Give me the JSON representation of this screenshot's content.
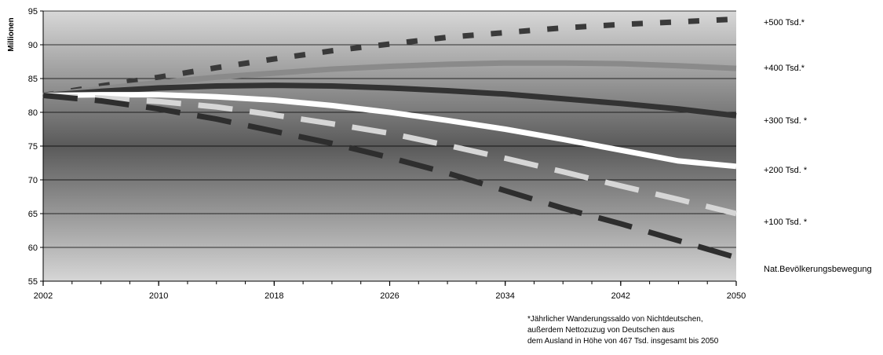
{
  "chart_data": {
    "type": "line",
    "ylabel": "Millionen",
    "xlabel": "",
    "xlim": [
      2002,
      2050
    ],
    "ylim": [
      55,
      95
    ],
    "x_ticks": [
      2002,
      2010,
      2018,
      2026,
      2034,
      2042,
      2050
    ],
    "y_ticks": [
      55,
      60,
      65,
      70,
      75,
      80,
      85,
      90,
      95
    ],
    "grid": "horizontal",
    "legend_placement": "right",
    "x": [
      2002,
      2006,
      2010,
      2014,
      2018,
      2022,
      2026,
      2030,
      2034,
      2038,
      2042,
      2046,
      2050
    ],
    "series": [
      {
        "name": "+500 Tsd.*",
        "style": "dotted",
        "color": "#3a3a3a",
        "values": [
          82.5,
          83.9,
          85.2,
          86.6,
          87.9,
          89.1,
          90.1,
          91.1,
          91.8,
          92.5,
          93.0,
          93.4,
          93.8
        ]
      },
      {
        "name": "+400 Tsd.*",
        "style": "solid",
        "color": "#8a8a8a",
        "values": [
          82.5,
          83.5,
          84.4,
          85.2,
          85.8,
          86.4,
          86.8,
          87.1,
          87.3,
          87.3,
          87.2,
          86.9,
          86.5
        ]
      },
      {
        "name": "+300 Tsd. *",
        "style": "solid",
        "color": "#333333",
        "values": [
          82.5,
          83.1,
          83.6,
          83.9,
          84.0,
          83.9,
          83.6,
          83.2,
          82.7,
          82.0,
          81.3,
          80.5,
          79.5
        ]
      },
      {
        "name": "+200 Tsd. *",
        "style": "solid",
        "color": "#ffffff",
        "values": [
          82.5,
          82.6,
          82.6,
          82.3,
          81.8,
          81.0,
          80.0,
          78.8,
          77.5,
          76.0,
          74.4,
          72.8,
          72.0
        ]
      },
      {
        "name": "+100 Tsd. *",
        "style": "dashed",
        "color": "#d6d6d6",
        "values": [
          82.5,
          82.1,
          81.6,
          80.8,
          79.6,
          78.3,
          76.9,
          75.1,
          73.2,
          71.2,
          69.1,
          67.1,
          65.0
        ]
      },
      {
        "name": "Nat.Bevölkerungsbewegung",
        "style": "dashed",
        "color": "#2e2e2e",
        "values": [
          82.5,
          81.7,
          80.5,
          79.0,
          77.2,
          75.4,
          73.3,
          71.0,
          68.4,
          65.8,
          63.5,
          61.0,
          58.5
        ]
      }
    ]
  },
  "footnote": {
    "line1": "*Jährlicher Wanderungssaldo von Nichtdeutschen,",
    "line2": "außerdem Nettozuzug von Deutschen aus",
    "line3": "dem Ausland in Höhe von 467 Tsd. insgesamt bis 2050"
  }
}
